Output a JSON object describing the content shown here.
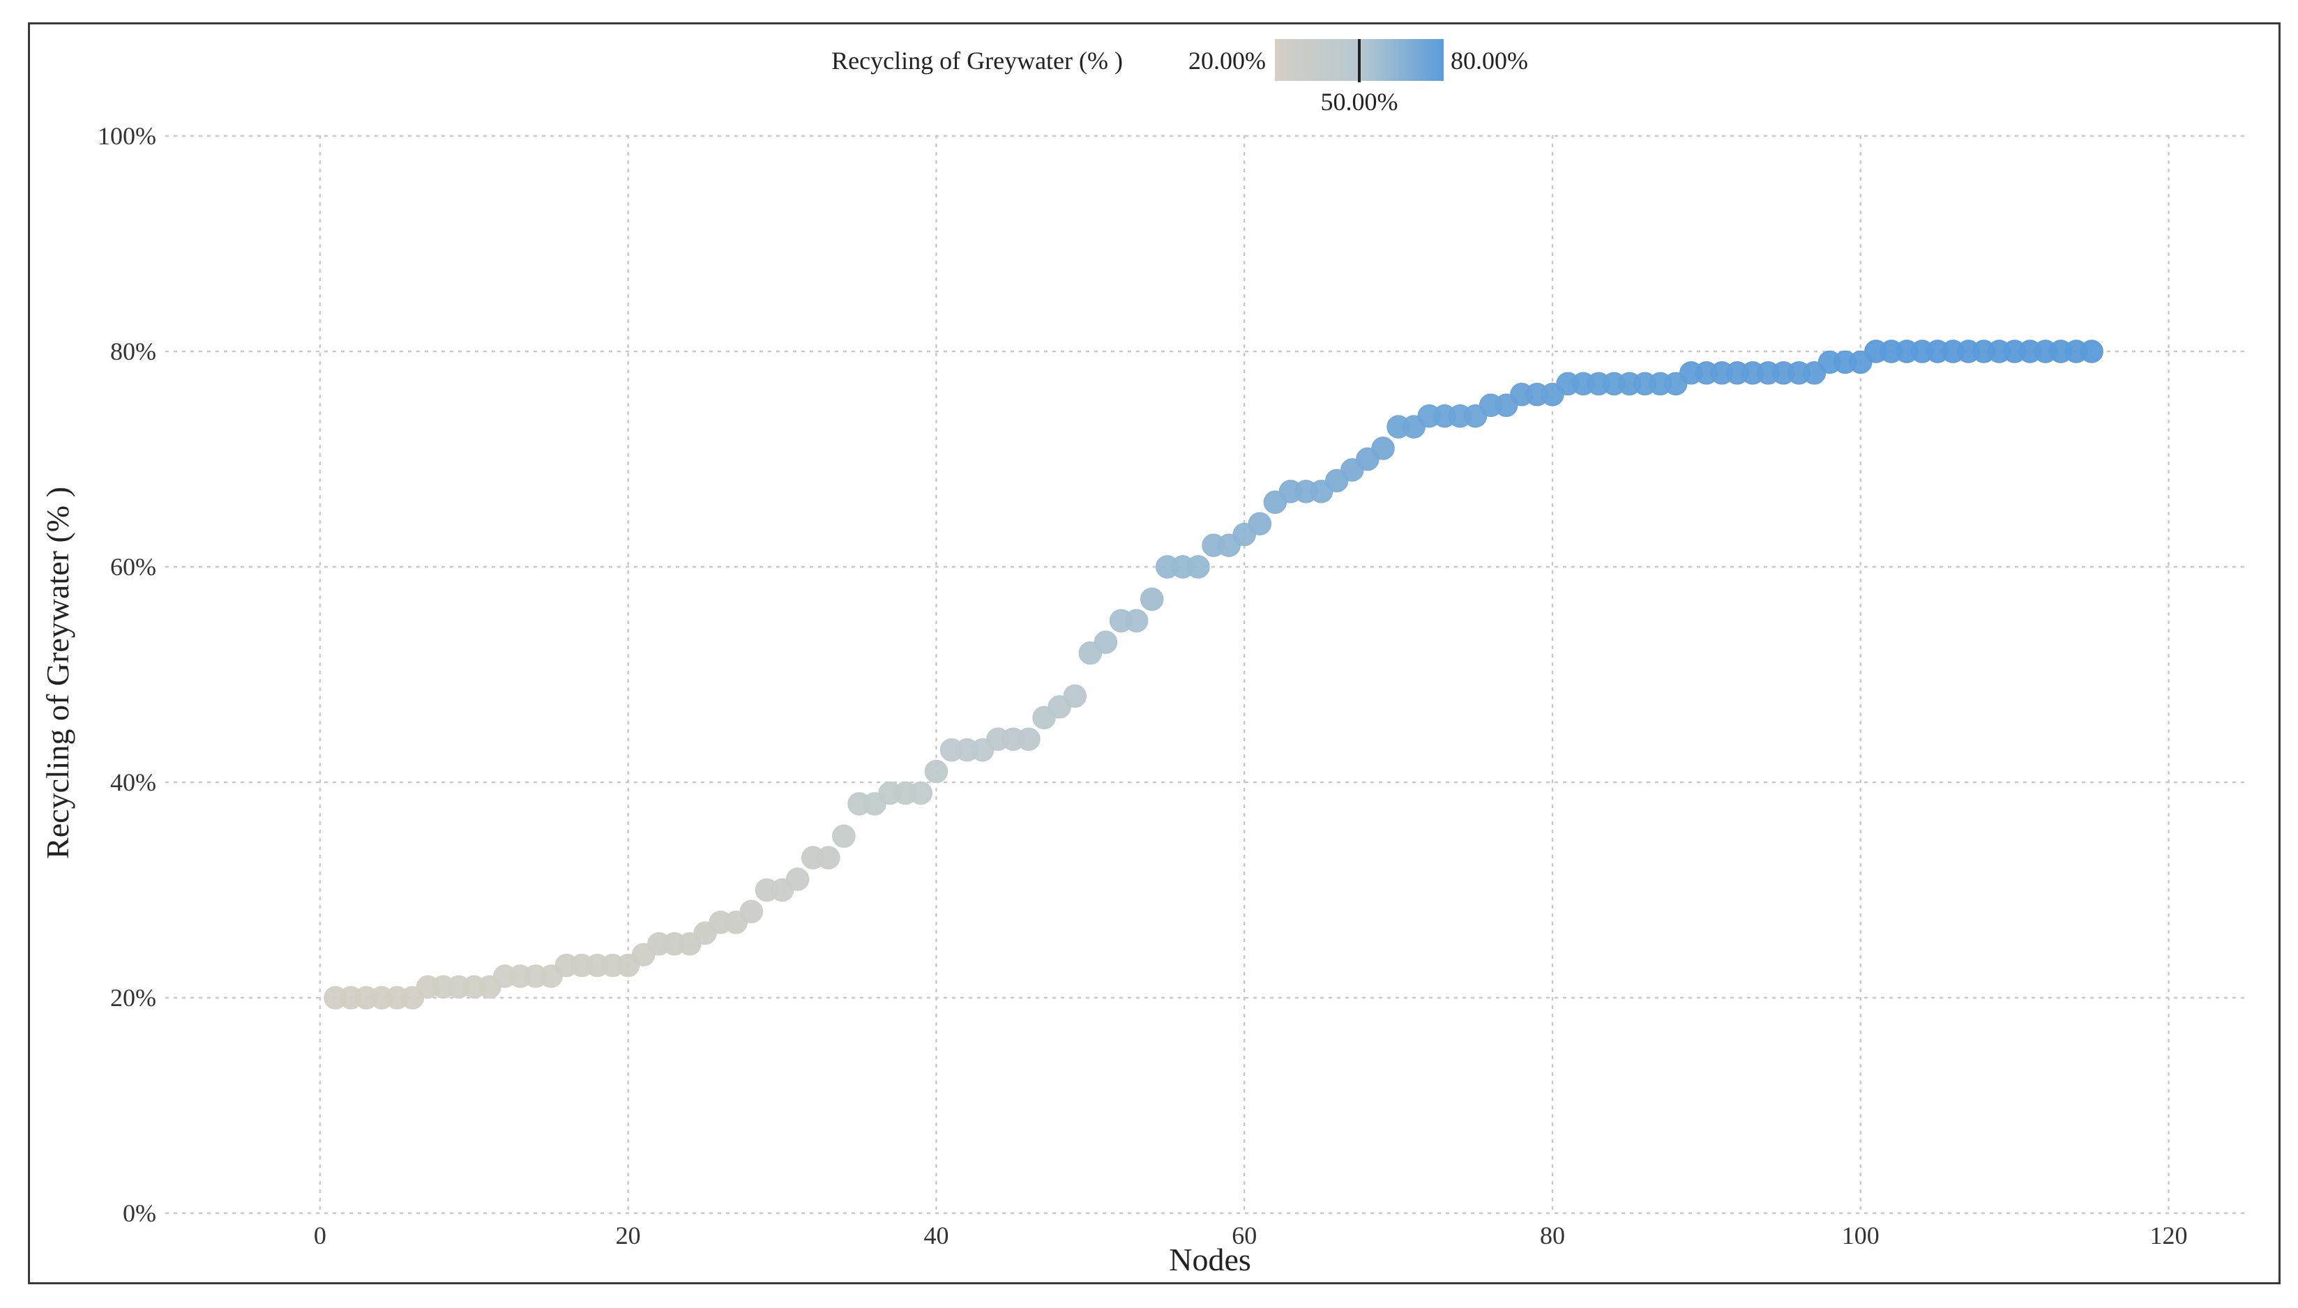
{
  "chart_data": {
    "type": "scatter",
    "title": "",
    "xlabel": "Nodes",
    "ylabel": "Recycling of Greywater (% )",
    "xlim": [
      -10,
      125
    ],
    "ylim": [
      0,
      100
    ],
    "x_ticks": [
      0,
      20,
      40,
      60,
      80,
      100,
      120
    ],
    "y_ticks": [
      0,
      20,
      40,
      60,
      80,
      100
    ],
    "x_tick_labels": [
      "0",
      "20",
      "40",
      "60",
      "80",
      "100",
      "120"
    ],
    "y_tick_labels": [
      "0%",
      "20%",
      "40%",
      "60%",
      "80%",
      "100%"
    ],
    "grid": true,
    "legend": {
      "title": "Recycling of Greywater (% )",
      "min_label": "20.00%",
      "mid_label": "50.00%",
      "max_label": "80.00%",
      "min_value": 20,
      "mid_value": 50,
      "max_value": 80,
      "min_color": "#d3cfc5",
      "mid_color": "#b7c8cf",
      "max_color": "#5b9bd9",
      "placement": "top-center"
    },
    "series": [
      {
        "name": "Recycling of Greywater (% )",
        "x": [
          1,
          2,
          3,
          4,
          5,
          6,
          7,
          8,
          9,
          10,
          11,
          12,
          13,
          14,
          15,
          16,
          17,
          18,
          19,
          20,
          21,
          22,
          23,
          24,
          25,
          26,
          27,
          28,
          29,
          30,
          31,
          32,
          33,
          34,
          35,
          36,
          37,
          38,
          39,
          40,
          41,
          42,
          43,
          44,
          45,
          46,
          47,
          48,
          49,
          50,
          51,
          52,
          53,
          54,
          55,
          56,
          57,
          58,
          59,
          60,
          61,
          62,
          63,
          64,
          65,
          66,
          67,
          68,
          69,
          70,
          71,
          72,
          73,
          74,
          75,
          76,
          77,
          78,
          79,
          80,
          81,
          82,
          83,
          84,
          85,
          86,
          87,
          88,
          89,
          90,
          91,
          92,
          93,
          94,
          95,
          96,
          97,
          98,
          99,
          100,
          101,
          102,
          103,
          104,
          105,
          106,
          107,
          108,
          109,
          110,
          111,
          112,
          113,
          114,
          115
        ],
        "y": [
          20,
          20,
          20,
          20,
          20,
          20,
          21,
          21,
          21,
          21,
          21,
          22,
          22,
          22,
          22,
          23,
          23,
          23,
          23,
          23,
          24,
          25,
          25,
          25,
          26,
          27,
          27,
          28,
          30,
          30,
          31,
          33,
          33,
          35,
          38,
          38,
          39,
          39,
          39,
          41,
          43,
          43,
          43,
          44,
          44,
          44,
          46,
          47,
          48,
          52,
          53,
          55,
          55,
          57,
          60,
          60,
          60,
          62,
          62,
          63,
          64,
          66,
          67,
          67,
          67,
          68,
          69,
          70,
          71,
          73,
          73,
          74,
          74,
          74,
          74,
          75,
          75,
          76,
          76,
          76,
          77,
          77,
          77,
          77,
          77,
          77,
          77,
          77,
          78,
          78,
          78,
          78,
          78,
          78,
          78,
          78,
          78,
          79,
          79,
          79,
          80,
          80,
          80,
          80,
          80,
          80,
          80,
          80,
          80,
          80,
          80,
          80,
          80,
          80,
          80
        ]
      }
    ]
  }
}
